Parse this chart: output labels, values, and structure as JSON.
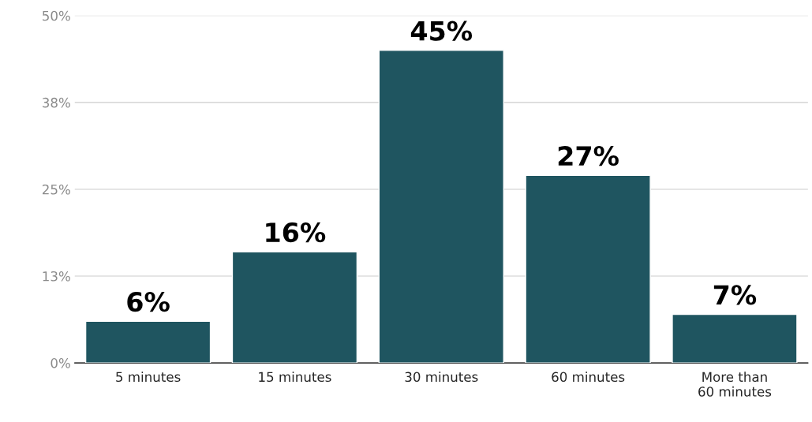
{
  "chart_data": {
    "type": "bar",
    "categories": [
      "5 minutes",
      "15 minutes",
      "30 minutes",
      "60 minutes",
      "More than\n60 minutes"
    ],
    "values": [
      6,
      16,
      45,
      27,
      7
    ],
    "value_labels": [
      "6%",
      "16%",
      "45%",
      "27%",
      "7%"
    ],
    "color": "#1f5560",
    "ylim": [
      0,
      50
    ],
    "yticks": [
      {
        "value": 0,
        "label": "0%"
      },
      {
        "value": 12.5,
        "label": "13%"
      },
      {
        "value": 25,
        "label": "25%"
      },
      {
        "value": 37.5,
        "label": "38%"
      },
      {
        "value": 50,
        "label": "50%"
      }
    ],
    "grid": "y"
  }
}
